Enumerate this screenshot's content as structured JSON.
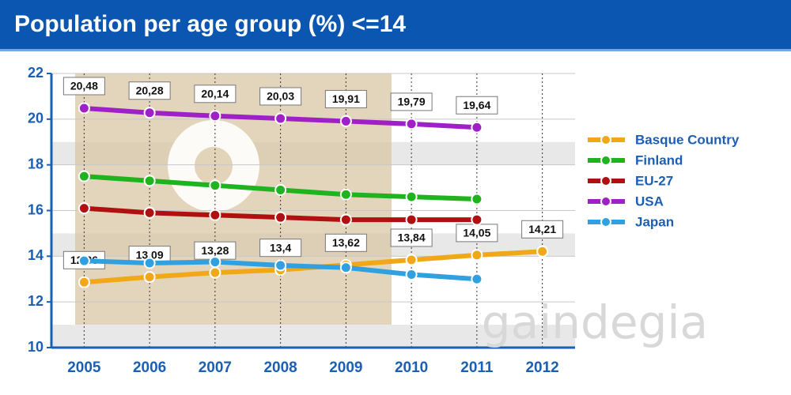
{
  "chart_data": {
    "type": "line",
    "title": "Population per age group (%) <=14",
    "watermark": "gaindegia",
    "categories": [
      "2005",
      "2006",
      "2007",
      "2008",
      "2009",
      "2010",
      "2011",
      "2012"
    ],
    "ylim": [
      10,
      22
    ],
    "yticks": [
      10,
      12,
      14,
      16,
      18,
      20,
      22
    ],
    "grid": true,
    "legend": "right",
    "series": [
      {
        "name": "Basque Country",
        "color": "#f0a818",
        "values": [
          12.86,
          13.09,
          13.28,
          13.4,
          13.62,
          13.84,
          14.05,
          14.21
        ],
        "value_labels": [
          "12,86",
          "13,09",
          "13,28",
          "13,4",
          "13,62",
          "13,84",
          "14,05",
          "14,21"
        ]
      },
      {
        "name": "Finland",
        "color": "#1fb31f",
        "values": [
          17.5,
          17.3,
          17.1,
          16.9,
          16.7,
          16.6,
          16.5,
          null
        ]
      },
      {
        "name": "EU-27",
        "color": "#b01010",
        "values": [
          16.1,
          15.9,
          15.8,
          15.7,
          15.6,
          15.6,
          15.6,
          null
        ]
      },
      {
        "name": "USA",
        "color": "#a020c8",
        "values": [
          20.48,
          20.28,
          20.14,
          20.03,
          19.91,
          19.79,
          19.64,
          null
        ],
        "value_labels": [
          "20,48",
          "20,28",
          "20,14",
          "20,03",
          "19,91",
          "19,79",
          "19,64",
          null
        ]
      },
      {
        "name": "Japan",
        "color": "#30a0e0",
        "values": [
          13.8,
          13.7,
          13.75,
          13.6,
          13.5,
          13.2,
          13.0,
          null
        ]
      }
    ]
  }
}
